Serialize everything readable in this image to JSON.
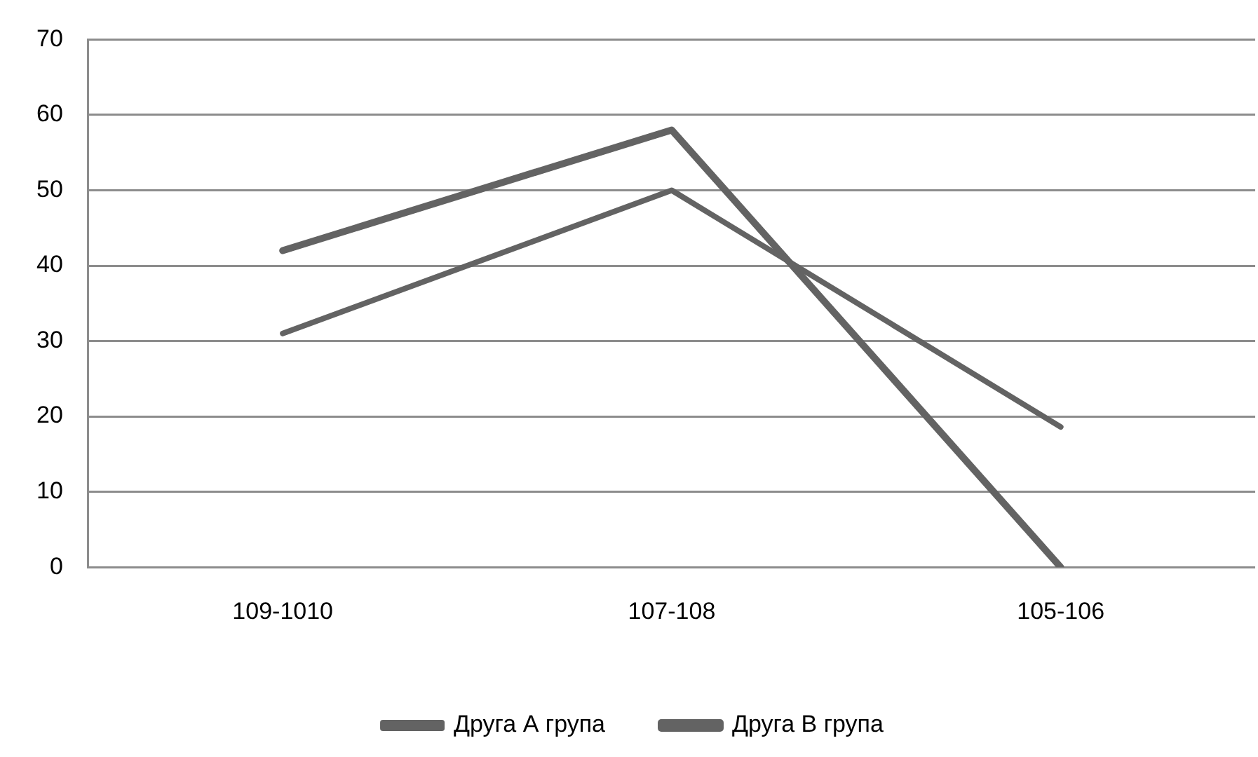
{
  "chart_data": {
    "type": "line",
    "categories": [
      "109-1010",
      "107-108",
      "105-106"
    ],
    "series": [
      {
        "name": "Друга А група",
        "color": "#636363",
        "values": [
          31,
          50,
          18.6
        ]
      },
      {
        "name": "Друга В група",
        "color": "#636363",
        "values": [
          42,
          58,
          0
        ]
      }
    ],
    "ylim": [
      0,
      70
    ],
    "yticks": [
      0,
      10,
      20,
      30,
      40,
      50,
      60,
      70
    ],
    "grid": "y",
    "legend": "bottom",
    "marker": "none",
    "line_style": "solid"
  }
}
